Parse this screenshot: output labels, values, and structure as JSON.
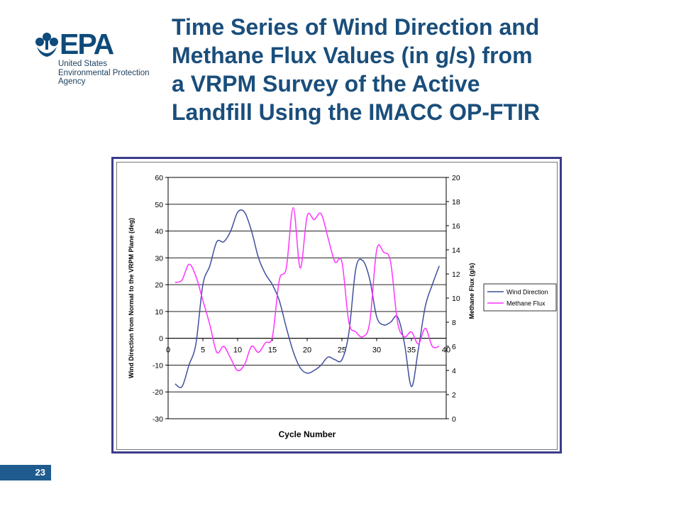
{
  "header": {
    "logo_text": "EPA",
    "logo_org_lines": [
      "United States",
      "Environmental Protection",
      "Agency"
    ],
    "title_lines": [
      "Time Series of Wind Direction and",
      "Methane Flux Values (in g/s) from",
      "a VRPM Survey of the Active",
      "Landfill Using the IMACC OP-FTIR"
    ]
  },
  "footer": {
    "page_number": "23"
  },
  "colors": {
    "title": "#1a4e7b",
    "wind": "#3f4f9e",
    "methane": "#ff33ff",
    "frame": "#3b3b8a",
    "page_badge": "#1f5b8f"
  },
  "chart_data": {
    "type": "line",
    "xlabel": "Cycle Number",
    "ylabel_left": "Wind Direction from Normal to the VRPM Plane (deg)",
    "ylabel_right": "Methane Flux (g/s)",
    "xlim": [
      0,
      40
    ],
    "xticks": [
      "0",
      "5",
      "10",
      "15",
      "20",
      "25",
      "30",
      "35",
      "40"
    ],
    "ylim_left": [
      -30,
      60
    ],
    "yticks_left": [
      "-30",
      "-20",
      "-10",
      "0",
      "10",
      "20",
      "30",
      "40",
      "50",
      "60"
    ],
    "ylim_right": [
      0,
      20
    ],
    "yticks_right": [
      "0",
      "2",
      "4",
      "6",
      "8",
      "10",
      "12",
      "14",
      "16",
      "18",
      "20"
    ],
    "grid": "horizontal",
    "legend_position": "right",
    "series": [
      {
        "name": "Wind Direction",
        "axis": "left",
        "x": [
          1,
          2,
          3,
          4,
          5,
          6,
          7,
          8,
          9,
          10,
          11,
          12,
          13,
          14,
          15,
          16,
          17,
          18,
          19,
          20,
          21,
          22,
          23,
          24,
          25,
          26,
          27,
          28,
          29,
          30,
          31,
          32,
          33,
          34,
          35,
          36,
          37,
          38,
          39
        ],
        "values": [
          -17,
          -18,
          -10,
          -2,
          20,
          27,
          36,
          36,
          40,
          47,
          47,
          40,
          30,
          24,
          20,
          14,
          4,
          -5,
          -11,
          -13,
          -12,
          -10,
          -7,
          -8,
          -8,
          2,
          26,
          29,
          22,
          8,
          5,
          6,
          8,
          -2,
          -18,
          -4,
          12,
          20,
          27
        ]
      },
      {
        "name": "Methane Flux",
        "axis": "right",
        "x": [
          1,
          2,
          3,
          4,
          5,
          6,
          7,
          8,
          9,
          10,
          11,
          12,
          13,
          14,
          15,
          16,
          17,
          18,
          19,
          20,
          21,
          22,
          23,
          24,
          25,
          26,
          27,
          28,
          29,
          30,
          31,
          32,
          33,
          34,
          35,
          36,
          37,
          38,
          39
        ],
        "values": [
          11.3,
          11.5,
          12.8,
          11.8,
          9.8,
          7.8,
          5.5,
          6,
          5,
          4,
          4.5,
          6,
          5.5,
          6.3,
          6.8,
          11.5,
          12.5,
          17.5,
          12.5,
          16.8,
          16.5,
          17,
          15,
          13,
          13,
          8,
          7.2,
          6.8,
          8,
          14,
          13.8,
          13,
          8,
          6.8,
          7.2,
          6.2,
          7.5,
          6,
          6
        ]
      }
    ]
  }
}
